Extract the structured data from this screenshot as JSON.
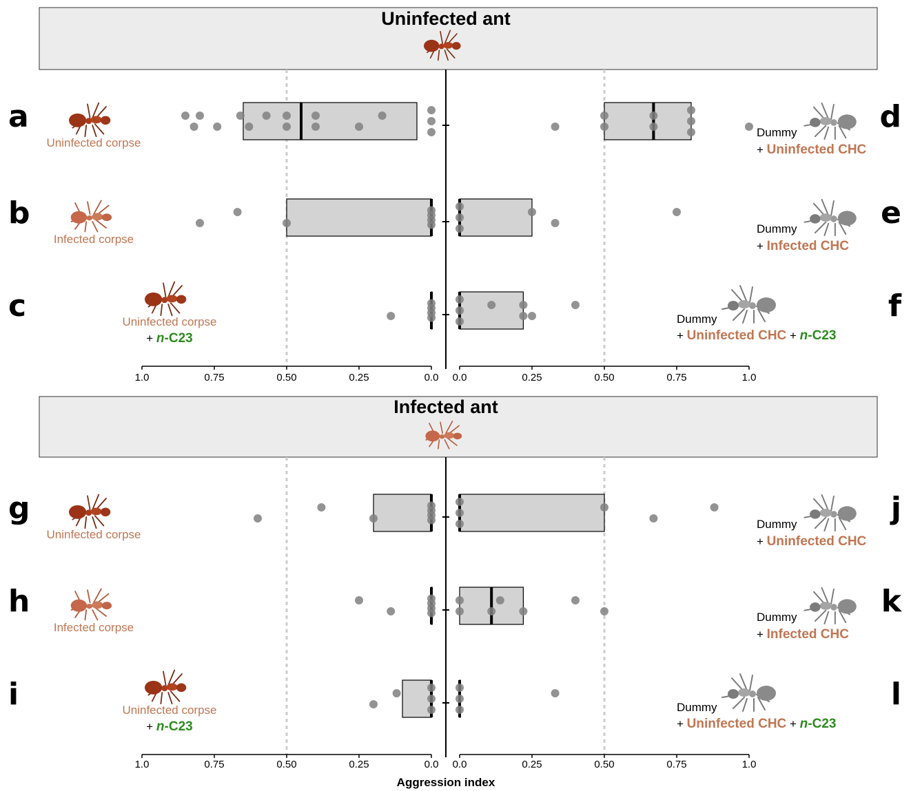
{
  "chart_data": [
    {
      "type": "boxplot",
      "title": "Uninfected ant",
      "xlabel": "",
      "left_axis": {
        "direction": "reversed",
        "range": [
          0,
          1.0
        ],
        "ticks": [
          "1.0",
          "0.75",
          "0.50",
          "0.25",
          "0.0"
        ]
      },
      "right_axis": {
        "direction": "normal",
        "range": [
          0,
          1.0
        ],
        "ticks": [
          "0.0",
          "0.25",
          "0.50",
          "0.75",
          "1.0"
        ]
      },
      "reference_lines": [
        0.5
      ],
      "rows": [
        {
          "left": {
            "letter": "a",
            "label": [
              "Uninfected corpse"
            ],
            "box": [
              0.05,
              0.45,
              0.65
            ],
            "points": [
              0.85,
              0.8,
              0.82,
              0.74,
              0.66,
              0.63,
              0.57,
              0.5,
              0.5,
              0.4,
              0.4,
              0.25,
              0.17,
              0.0,
              0.0,
              0.0
            ]
          },
          "right": {
            "letter": "d",
            "label": [
              "Dummy",
              "+ Uninfected CHC"
            ],
            "box": [
              0.5,
              0.67,
              0.8
            ],
            "points": [
              0.33,
              0.5,
              0.5,
              0.67,
              0.67,
              0.8,
              0.8,
              0.8,
              1.0
            ]
          }
        },
        {
          "left": {
            "letter": "b",
            "label": [
              "Infected corpse"
            ],
            "box": [
              0.0,
              0.0,
              0.5
            ],
            "points": [
              0.8,
              0.67,
              0.5,
              0.0,
              0.0,
              0.0,
              0.0
            ]
          },
          "right": {
            "letter": "e",
            "label": [
              "Dummy",
              "+ Infected CHC"
            ],
            "box": [
              0.0,
              0.0,
              0.25
            ],
            "points": [
              0.0,
              0.0,
              0.0,
              0.25,
              0.33,
              0.75
            ]
          }
        },
        {
          "left": {
            "letter": "c",
            "label": [
              "Uninfected corpse",
              "+ n-C23"
            ],
            "box": [
              0.0,
              0.0,
              0.0
            ],
            "points": [
              0.14,
              0.0,
              0.0,
              0.0,
              0.0
            ]
          },
          "right": {
            "letter": "f",
            "label": [
              "Dummy",
              "+ Uninfected CHC + n-C23"
            ],
            "box": [
              0.0,
              0.0,
              0.22
            ],
            "points": [
              0.0,
              0.0,
              0.0,
              0.11,
              0.22,
              0.22,
              0.25,
              0.4
            ]
          }
        }
      ]
    },
    {
      "type": "boxplot",
      "title": "Infected ant",
      "xlabel": "Aggression index",
      "left_axis": {
        "direction": "reversed",
        "range": [
          0,
          1.0
        ],
        "ticks": [
          "1.0",
          "0.75",
          "0.50",
          "0.25",
          "0.0"
        ]
      },
      "right_axis": {
        "direction": "normal",
        "range": [
          0,
          1.0
        ],
        "ticks": [
          "0.0",
          "0.25",
          "0.50",
          "0.75",
          "1.0"
        ]
      },
      "reference_lines": [
        0.5
      ],
      "rows": [
        {
          "left": {
            "letter": "g",
            "label": [
              "Uninfected corpse"
            ],
            "box": [
              0.0,
              0.0,
              0.2
            ],
            "points": [
              0.6,
              0.38,
              0.2,
              0.0,
              0.0,
              0.0,
              0.0
            ]
          },
          "right": {
            "letter": "j",
            "label": [
              "Dummy",
              "+ Uninfected CHC"
            ],
            "box": [
              0.0,
              0.0,
              0.5
            ],
            "points": [
              0.0,
              0.0,
              0.0,
              0.5,
              0.67,
              0.88
            ]
          }
        },
        {
          "left": {
            "letter": "h",
            "label": [
              "Infected corpse"
            ],
            "box": [
              0.0,
              0.0,
              0.0
            ],
            "points": [
              0.25,
              0.14,
              0.0,
              0.0,
              0.0,
              0.0
            ]
          },
          "right": {
            "letter": "k",
            "label": [
              "Dummy",
              "+ Infected CHC"
            ],
            "box": [
              0.0,
              0.11,
              0.22
            ],
            "points": [
              0.0,
              0.0,
              0.11,
              0.14,
              0.22,
              0.4,
              0.5
            ]
          }
        },
        {
          "left": {
            "letter": "i",
            "label": [
              "Uninfected corpse",
              "+ n-C23"
            ],
            "box": [
              0.0,
              0.0,
              0.1
            ],
            "points": [
              0.2,
              0.12,
              0.0,
              0.0,
              0.0
            ]
          },
          "right": {
            "letter": "l",
            "label": [
              "Dummy",
              "+ Uninfected CHC + n-C23"
            ],
            "box": [
              0.0,
              0.0,
              0.0
            ],
            "points": [
              0.0,
              0.0,
              0.0,
              0.33
            ]
          }
        }
      ]
    }
  ],
  "colors": {
    "box_fill": "#d3d3d3",
    "point": "#808080",
    "strip_bg": "#ececec",
    "label_copper": "#c07652",
    "label_green": "#2d8a1f",
    "reference_line": "#cccccc"
  },
  "icons": {
    "header_ant": "ant-icon",
    "corpse": "ant-corpse-icon",
    "dummy": "dummy-ant-icon"
  }
}
